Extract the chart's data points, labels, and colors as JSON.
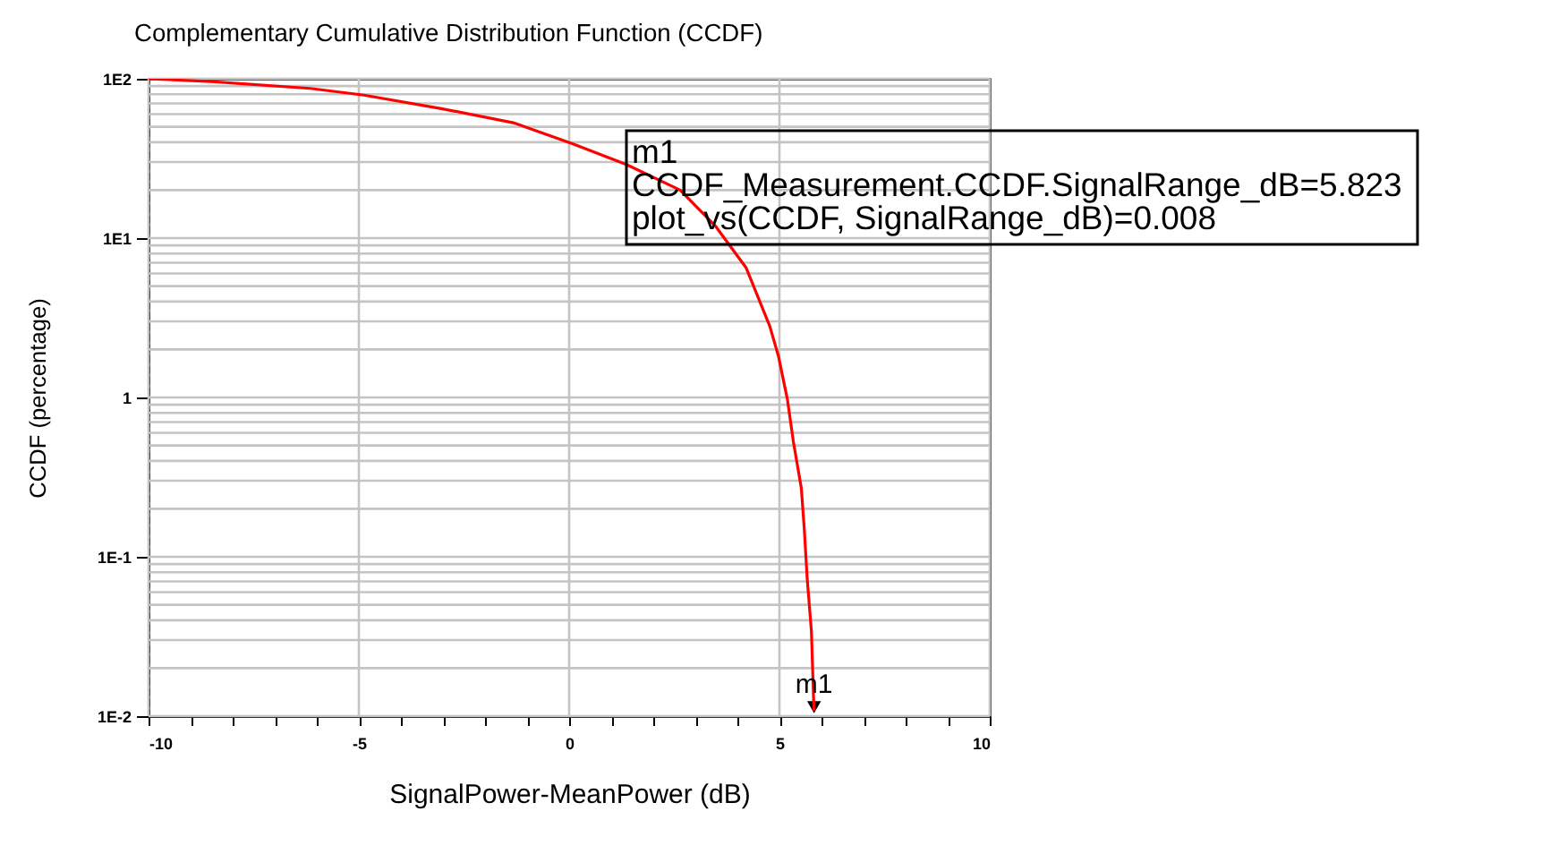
{
  "chart_data": {
    "type": "line",
    "title": "Complementary Cumulative Distribution Function (CCDF)",
    "xlabel": "SignalPower-MeanPower (dB)",
    "ylabel": "CCDF (percentage)",
    "x": [
      -10,
      -8.5,
      -6.16,
      -4.88,
      -3.04,
      -1.33,
      0.09,
      1.36,
      2.64,
      3.49,
      4.21,
      4.77,
      4.98,
      5.19,
      5.33,
      5.52,
      5.59,
      5.66,
      5.76,
      5.82
    ],
    "series": [
      {
        "color": "#ff0000",
        "values": [
          100,
          96,
          87,
          79,
          65,
          53,
          39,
          29,
          20,
          11.8,
          6.5,
          2.8,
          1.8,
          0.97,
          0.53,
          0.27,
          0.15,
          0.073,
          0.034,
          0.011
        ]
      }
    ],
    "xlim": [
      -10,
      10
    ],
    "ylim": [
      0.01,
      100
    ],
    "log": "y",
    "grid": true,
    "xticks": [
      -10,
      {
        "value": -9,
        "label": null
      },
      {
        "value": -8,
        "label": null
      },
      {
        "value": -7,
        "label": null
      },
      {
        "value": -6,
        "label": null
      },
      -5,
      {
        "value": -4,
        "label": null
      },
      {
        "value": -3,
        "label": null
      },
      {
        "value": -2,
        "label": null
      },
      {
        "value": -1,
        "label": null
      },
      0,
      {
        "value": 1,
        "label": null
      },
      {
        "value": 2,
        "label": null
      },
      {
        "value": 3,
        "label": null
      },
      {
        "value": 4,
        "label": null
      },
      5,
      {
        "value": 6,
        "label": null
      },
      {
        "value": 7,
        "label": null
      },
      {
        "value": 8,
        "label": null
      },
      {
        "value": 9,
        "label": null
      },
      10
    ],
    "yticks": [
      {
        "value": 100,
        "label": "1E2"
      },
      {
        "value": 10,
        "label": "1E1"
      },
      1,
      {
        "value": 0.1,
        "label": "1E-1"
      },
      {
        "value": 0.01,
        "label": "1E-2"
      }
    ],
    "annotations": [
      {
        "text": "m1",
        "x": 5.823
      },
      "m1",
      "CCDF_Measurement.CCDF.SignalRange_dB=5.823",
      "plot_vs(CCDF, SignalRange_dB)=0.008"
    ]
  }
}
